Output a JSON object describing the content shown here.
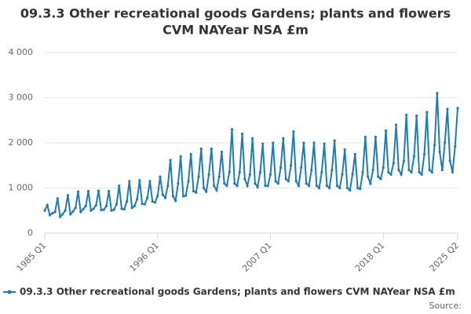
{
  "chart_data": {
    "type": "line",
    "title": [
      "09.3.3 Other recreational goods Gardens; plants and flowers",
      "CVM NAYear NSA £m"
    ],
    "source": "Source:",
    "categories": [
      "1985 Q1",
      null,
      null,
      null,
      null,
      null,
      null,
      null,
      null,
      null,
      null,
      null,
      null,
      null,
      null,
      null,
      null,
      null,
      null,
      null,
      null,
      null,
      null,
      null,
      null,
      null,
      null,
      null,
      null,
      null,
      null,
      null,
      null,
      null,
      null,
      null,
      null,
      null,
      null,
      null,
      null,
      null,
      null,
      null,
      "1996 Q1",
      null,
      null,
      null,
      null,
      null,
      null,
      null,
      null,
      null,
      null,
      null,
      null,
      null,
      null,
      null,
      null,
      null,
      null,
      null,
      null,
      null,
      null,
      null,
      null,
      null,
      null,
      null,
      null,
      null,
      null,
      null,
      null,
      null,
      null,
      null,
      null,
      null,
      null,
      null,
      null,
      null,
      null,
      null,
      "2007 Q1",
      null,
      null,
      null,
      null,
      null,
      null,
      null,
      null,
      null,
      null,
      null,
      null,
      null,
      null,
      null,
      null,
      null,
      null,
      null,
      null,
      null,
      null,
      null,
      null,
      null,
      null,
      null,
      null,
      null,
      null,
      null,
      null,
      null,
      null,
      null,
      null,
      null,
      null,
      null,
      null,
      null,
      null,
      null,
      "2018 Q1",
      null,
      null,
      null,
      null,
      null,
      null,
      null,
      null,
      null,
      null,
      null,
      null,
      null,
      null,
      null,
      null,
      null,
      null,
      null,
      null,
      null,
      null,
      null,
      null,
      null,
      null,
      null,
      null,
      "2025 Q2"
    ],
    "series": [
      {
        "name": "09.3.3 Other recreational goods Gardens; plants and flowers CVM NAYear NSA £m",
        "color": "#1f7bb6",
        "values": [
          500,
          620,
          400,
          440,
          470,
          770,
          360,
          420,
          500,
          840,
          420,
          480,
          560,
          920,
          470,
          530,
          600,
          930,
          500,
          540,
          620,
          940,
          510,
          520,
          600,
          930,
          500,
          520,
          640,
          1050,
          540,
          530,
          700,
          1150,
          560,
          600,
          750,
          1170,
          650,
          640,
          780,
          1150,
          700,
          680,
          820,
          1250,
          850,
          780,
          1050,
          1620,
          820,
          720,
          1100,
          1700,
          820,
          830,
          1150,
          1750,
          930,
          900,
          1250,
          1870,
          1000,
          920,
          1300,
          1870,
          1050,
          950,
          1250,
          1800,
          1100,
          1050,
          1350,
          2300,
          1100,
          1050,
          1350,
          2200,
          1200,
          1050,
          1300,
          2100,
          1100,
          1020,
          1350,
          1980,
          1050,
          1050,
          1300,
          2000,
          1150,
          1100,
          1450,
          2100,
          1200,
          1150,
          1500,
          2250,
          1150,
          1050,
          1450,
          2000,
          1100,
          1050,
          1400,
          2000,
          1050,
          1000,
          1350,
          1980,
          1050,
          1000,
          1400,
          2050,
          1050,
          1000,
          1300,
          1850,
          1000,
          950,
          1300,
          1750,
          1000,
          980,
          1350,
          2130,
          1250,
          1100,
          1400,
          2130,
          1250,
          1200,
          1450,
          2270,
          1350,
          1300,
          1550,
          2400,
          1400,
          1300,
          1600,
          2620,
          1400,
          1350,
          1700,
          2600,
          1350,
          1300,
          1750,
          2680,
          1400,
          1350,
          1950,
          3100,
          1800,
          1400,
          2000,
          2750,
          1600,
          1350,
          1920,
          2770
        ]
      }
    ],
    "ylim": [
      0,
      4000
    ],
    "yticks": [
      0,
      {
        "value": 1000,
        "label": "1 000"
      },
      {
        "value": 2000,
        "label": "2 000"
      },
      {
        "value": 3000,
        "label": "3 000"
      },
      {
        "value": 4000,
        "label": "4 000"
      }
    ],
    "grid": true
  }
}
